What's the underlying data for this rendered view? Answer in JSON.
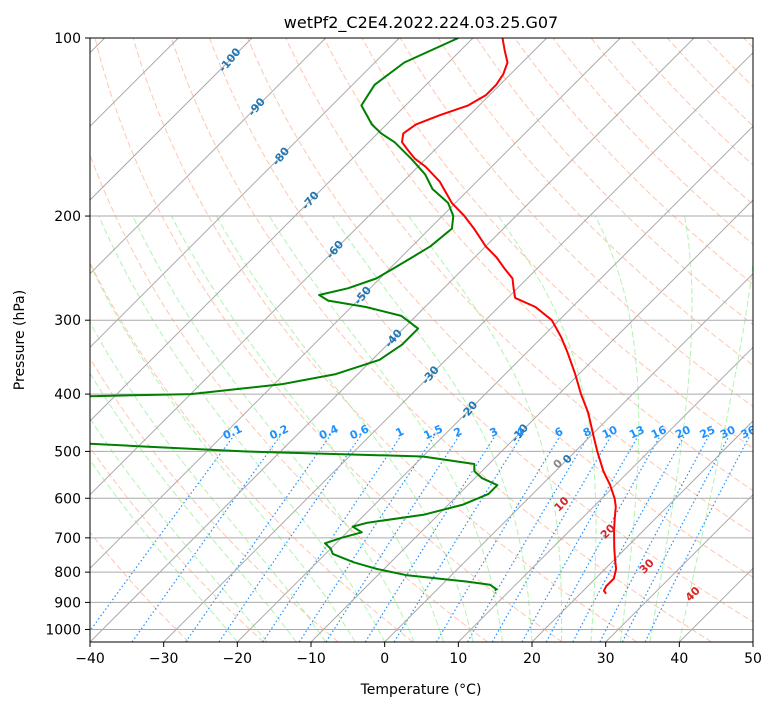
{
  "chart_data": {
    "type": "skew-t log-p",
    "title": "wetPf2_C2E4.2022.224.03.25.G07",
    "xlabel": "Temperature (°C)",
    "ylabel": "Pressure (hPa)",
    "xlim": [
      -40,
      50
    ],
    "ylim": [
      1050,
      100
    ],
    "y_scale": "log",
    "grid": true,
    "x_ticks": [
      "−40",
      "−30",
      "−20",
      "−10",
      "0",
      "10",
      "20",
      "30",
      "40",
      "50"
    ],
    "x_tick_values": [
      -40,
      -30,
      -20,
      -10,
      0,
      10,
      20,
      30,
      40,
      50
    ],
    "y_ticks": [
      "100",
      "200",
      "300",
      "400",
      "500",
      "600",
      "700",
      "800",
      "900",
      "1000"
    ],
    "y_tick_values": [
      100,
      200,
      300,
      400,
      500,
      600,
      700,
      800,
      900,
      1000
    ],
    "colors": {
      "temperature": "#ff0000",
      "dewpoint": "#008000",
      "dry_adiabat": "#ffa07a",
      "moist_adiabat": "#90ee90",
      "mixing_ratio": "#1e90ff",
      "isotherm": "#aaaaaa",
      "label_dry": "#1f77b4",
      "label_moist": "#d62728"
    },
    "series": [
      {
        "key": "temperature",
        "p": [
          870,
          860,
          845,
          820,
          790,
          760,
          730,
          700,
          680,
          650,
          620,
          600,
          570,
          540,
          500,
          470,
          430,
          400,
          370,
          340,
          320,
          300,
          285,
          275,
          265,
          255,
          245,
          235,
          225,
          210,
          200,
          190,
          175,
          165,
          160,
          155,
          150,
          145,
          140,
          135,
          130,
          125,
          120,
          115,
          110,
          105,
          100
        ],
        "t": [
          23.5,
          22.8,
          22.5,
          22.5,
          21.5,
          20.0,
          18.5,
          17.0,
          16.0,
          14.5,
          13.0,
          11.7,
          9.3,
          6.5,
          3.0,
          0.3,
          -3.5,
          -7.0,
          -10.5,
          -14.5,
          -17.5,
          -21.0,
          -25.0,
          -29.0,
          -30.5,
          -32.0,
          -34.5,
          -37.0,
          -40.0,
          -44.0,
          -47.0,
          -50.5,
          -55.0,
          -59.0,
          -61.5,
          -63.5,
          -65.5,
          -66.5,
          -66.0,
          -64.0,
          -61.5,
          -60.5,
          -60.5,
          -61.0,
          -62.0,
          -64.0,
          -66.0
        ]
      },
      {
        "key": "dewpoint",
        "p": [
          860,
          855,
          840,
          830,
          810,
          790,
          770,
          745,
          730,
          715,
          700,
          685,
          670,
          660,
          640,
          615,
          590,
          570,
          555,
          540,
          525,
          510,
          500,
          490,
          480,
          470,
          450,
          430,
          410,
          400,
          385,
          370,
          350,
          330,
          310,
          295,
          285,
          278,
          272,
          265,
          255,
          245,
          235,
          225,
          210,
          200,
          190,
          180,
          170,
          160,
          150,
          145,
          140,
          130,
          120,
          110,
          100
        ],
        "t": [
          8.0,
          8.0,
          6.5,
          3.0,
          -6.0,
          -11.0,
          -15.0,
          -19.0,
          -20.0,
          -21.5,
          -20.0,
          -18.0,
          -20.0,
          -18.5,
          -12.0,
          -8.0,
          -6.0,
          -6.0,
          -9.0,
          -11.0,
          -12.0,
          -20.0,
          -45.0,
          -60.0,
          -75.0,
          -90.0,
          -100.0,
          -100.0,
          -100.0,
          -60.0,
          -49.0,
          -43.0,
          -39.0,
          -38.0,
          -38.0,
          -42.0,
          -48.0,
          -54.0,
          -56.0,
          -53.0,
          -50.5,
          -49.5,
          -48.5,
          -47.5,
          -47.0,
          -48.5,
          -51.0,
          -55.0,
          -58.0,
          -62.0,
          -66.5,
          -69.5,
          -72.0,
          -76.0,
          -77.0,
          -76.0,
          -72.0
        ]
      }
    ],
    "dry_adiabat_labels": [
      "-100",
      "-90",
      "-80",
      "-70",
      "-60",
      "-50",
      "-40",
      "-30",
      "-20",
      "-10",
      "0"
    ],
    "mixing_ratio_labels": [
      "0.1",
      "0.2",
      "0.4",
      "0.6",
      "1",
      "1.5",
      "2",
      "3",
      "4",
      "6",
      "8",
      "10",
      "13",
      "16",
      "20",
      "25",
      "30",
      "36"
    ],
    "moist_adiabat_labels": [
      "10",
      "20",
      "30",
      "40"
    ]
  }
}
